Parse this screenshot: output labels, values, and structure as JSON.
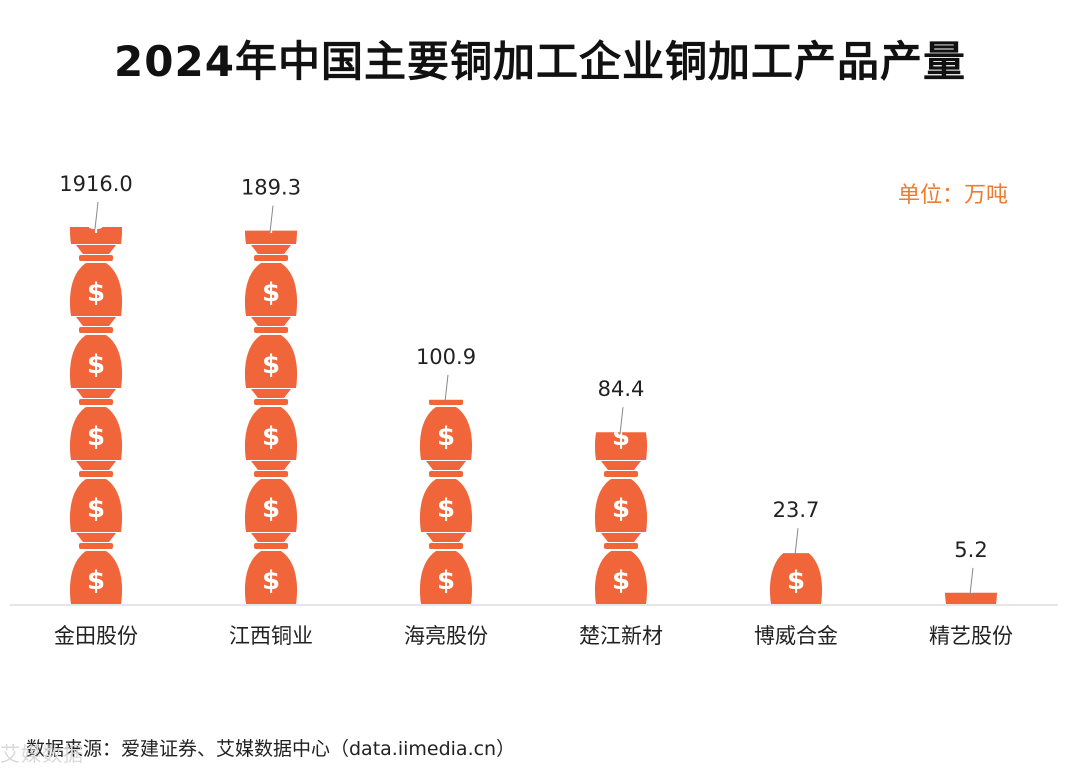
{
  "title": "2024年中国主要铜加工企业铜加工产品产量",
  "unit_label": "单位：万吨",
  "source": "数据来源：爱建证券、艾媒数据中心（data.iimedia.cn）",
  "watermark": "艾媒数据",
  "colors": {
    "bag": "#f0663a",
    "bag_symbol": "#ffffff",
    "unit": "#ee7b2f",
    "baseline": "#dddddd"
  },
  "icon": "money-bag-icon",
  "chart_data": {
    "type": "bar",
    "style": "pictorial stacked money-bag icons",
    "categories": [
      "金田股份",
      "江西铜业",
      "海亮股份",
      "楚江新材",
      "博威合金",
      "精艺股份"
    ],
    "values": [
      1916.0,
      189.3,
      100.9,
      84.4,
      23.7,
      5.2
    ],
    "value_labels": [
      "1916.0",
      "189.3",
      "100.9",
      "84.4",
      "23.7",
      "5.2"
    ],
    "icon_stack_visual": [
      5.25,
      5.2,
      2.85,
      2.4,
      0.72,
      0.17
    ],
    "title": "2024年中国主要铜加工企业铜加工产品产量",
    "xlabel": "",
    "ylabel": "",
    "grid": false,
    "legend": "none"
  }
}
